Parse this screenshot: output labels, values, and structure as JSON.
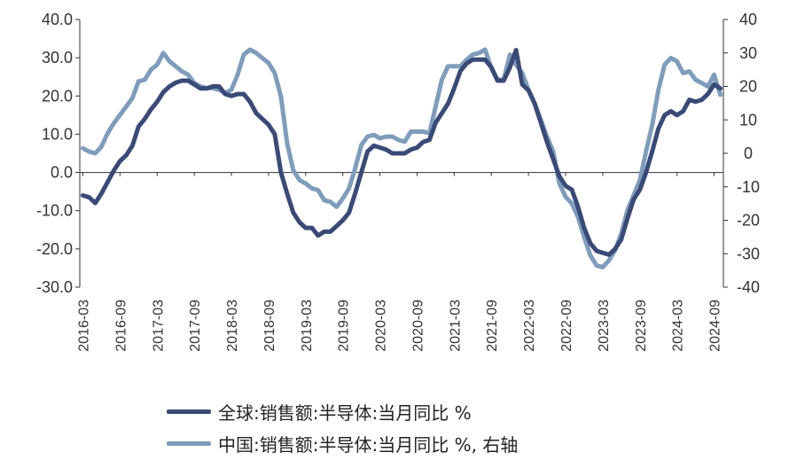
{
  "chart_data": {
    "type": "line",
    "legend": [
      {
        "name": "全球:销售额:半导体:当月同比 %",
        "color": "#3a4a78"
      },
      {
        "name": "中国:销售额:半导体:当月同比 %, 右轴",
        "color": "#7f9dbb"
      }
    ],
    "x_tick_labels": [
      "2016-03",
      "2016-09",
      "2017-03",
      "2017-09",
      "2018-03",
      "2018-09",
      "2019-03",
      "2019-09",
      "2020-03",
      "2020-09",
      "2021-03",
      "2021-09",
      "2022-03",
      "2022-09",
      "2023-03",
      "2023-09",
      "2024-03",
      "2024-09"
    ],
    "y_left": {
      "min": -30,
      "max": 40,
      "ticks": [
        "40.0",
        "30.0",
        "20.0",
        "10.0",
        "0.0",
        "-10.0",
        "-20.0",
        "-30.0"
      ]
    },
    "y_right": {
      "min": -40,
      "max": 40,
      "ticks": [
        "40",
        "30",
        "20",
        "10",
        "0",
        "-10",
        "-20",
        "-30",
        "-40"
      ]
    },
    "series": [
      {
        "name": "全球:销售额:半导体:当月同比 %",
        "axis": "left",
        "color": "#3a4a78",
        "points": [
          [
            "2016-03",
            -6.0
          ],
          [
            "2016-04",
            -6.5
          ],
          [
            "2016-05",
            -8.0
          ],
          [
            "2016-06",
            -5.5
          ],
          [
            "2016-07",
            -2.5
          ],
          [
            "2016-08",
            0.5
          ],
          [
            "2016-09",
            3.0
          ],
          [
            "2016-10",
            4.5
          ],
          [
            "2016-11",
            7.0
          ],
          [
            "2016-12",
            12.0
          ],
          [
            "2017-01",
            14.0
          ],
          [
            "2017-02",
            16.5
          ],
          [
            "2017-03",
            18.5
          ],
          [
            "2017-04",
            21.0
          ],
          [
            "2017-05",
            22.5
          ],
          [
            "2017-06",
            23.5
          ],
          [
            "2017-07",
            24.0
          ],
          [
            "2017-08",
            24.0
          ],
          [
            "2017-09",
            23.0
          ],
          [
            "2017-10",
            22.0
          ],
          [
            "2017-11",
            22.0
          ],
          [
            "2017-12",
            22.5
          ],
          [
            "2018-01",
            22.5
          ],
          [
            "2018-02",
            20.5
          ],
          [
            "2018-03",
            20.0
          ],
          [
            "2018-04",
            20.5
          ],
          [
            "2018-05",
            20.5
          ],
          [
            "2018-06",
            18.5
          ],
          [
            "2018-07",
            15.5
          ],
          [
            "2018-08",
            14.0
          ],
          [
            "2018-09",
            12.5
          ],
          [
            "2018-10",
            10.0
          ],
          [
            "2018-11",
            0.0
          ],
          [
            "2018-12",
            -5.5
          ],
          [
            "2019-01",
            -10.5
          ],
          [
            "2019-02",
            -13.0
          ],
          [
            "2019-03",
            -14.5
          ],
          [
            "2019-04",
            -14.5
          ],
          [
            "2019-05",
            -16.5
          ],
          [
            "2019-06",
            -15.5
          ],
          [
            "2019-07",
            -15.5
          ],
          [
            "2019-08",
            -14.0
          ],
          [
            "2019-09",
            -12.5
          ],
          [
            "2019-10",
            -10.5
          ],
          [
            "2019-11",
            -5.5
          ],
          [
            "2019-12",
            0.0
          ],
          [
            "2020-01",
            5.5
          ],
          [
            "2020-02",
            7.0
          ],
          [
            "2020-03",
            6.5
          ],
          [
            "2020-04",
            6.0
          ],
          [
            "2020-05",
            5.0
          ],
          [
            "2020-06",
            5.0
          ],
          [
            "2020-07",
            5.0
          ],
          [
            "2020-08",
            6.0
          ],
          [
            "2020-09",
            6.5
          ],
          [
            "2020-10",
            8.0
          ],
          [
            "2020-11",
            8.5
          ],
          [
            "2020-12",
            13.0
          ],
          [
            "2021-01",
            15.5
          ],
          [
            "2021-02",
            18.0
          ],
          [
            "2021-03",
            22.0
          ],
          [
            "2021-04",
            26.5
          ],
          [
            "2021-05",
            28.5
          ],
          [
            "2021-06",
            29.5
          ],
          [
            "2021-07",
            29.5
          ],
          [
            "2021-08",
            29.5
          ],
          [
            "2021-09",
            27.5
          ],
          [
            "2021-10",
            24.0
          ],
          [
            "2021-11",
            24.0
          ],
          [
            "2021-12",
            27.5
          ],
          [
            "2022-01",
            32.0
          ],
          [
            "2022-02",
            23.0
          ],
          [
            "2022-03",
            21.5
          ],
          [
            "2022-04",
            18.0
          ],
          [
            "2022-05",
            13.0
          ],
          [
            "2022-06",
            8.0
          ],
          [
            "2022-07",
            3.5
          ],
          [
            "2022-08",
            -1.0
          ],
          [
            "2022-09",
            -3.5
          ],
          [
            "2022-10",
            -4.5
          ],
          [
            "2022-11",
            -9.0
          ],
          [
            "2022-12",
            -14.5
          ],
          [
            "2023-01",
            -18.5
          ],
          [
            "2023-02",
            -20.5
          ],
          [
            "2023-03",
            -21.0
          ],
          [
            "2023-04",
            -21.5
          ],
          [
            "2023-05",
            -20.0
          ],
          [
            "2023-06",
            -17.5
          ],
          [
            "2023-07",
            -12.0
          ],
          [
            "2023-08",
            -7.0
          ],
          [
            "2023-09",
            -4.5
          ],
          [
            "2023-10",
            0.0
          ],
          [
            "2023-11",
            5.5
          ],
          [
            "2023-12",
            11.5
          ],
          [
            "2024-01",
            15.0
          ],
          [
            "2024-02",
            16.0
          ],
          [
            "2024-03",
            15.0
          ],
          [
            "2024-04",
            16.0
          ],
          [
            "2024-05",
            19.0
          ],
          [
            "2024-06",
            18.5
          ],
          [
            "2024-07",
            19.0
          ],
          [
            "2024-08",
            20.5
          ],
          [
            "2024-09",
            23.0
          ],
          [
            "2024-10",
            22.0
          ]
        ]
      },
      {
        "name": "中国:销售额:半导体:当月同比 %, 右轴",
        "axis": "right",
        "color": "#7f9dbb",
        "points": [
          [
            "2016-03",
            1.5
          ],
          [
            "2016-04",
            0.5
          ],
          [
            "2016-05",
            0.0
          ],
          [
            "2016-06",
            2.0
          ],
          [
            "2016-07",
            6.0
          ],
          [
            "2016-08",
            9.0
          ],
          [
            "2016-09",
            11.5
          ],
          [
            "2016-10",
            14.0
          ],
          [
            "2016-11",
            16.5
          ],
          [
            "2016-12",
            21.5
          ],
          [
            "2017-01",
            22.0
          ],
          [
            "2017-02",
            25.0
          ],
          [
            "2017-03",
            26.5
          ],
          [
            "2017-04",
            30.0
          ],
          [
            "2017-05",
            27.5
          ],
          [
            "2017-06",
            26.0
          ],
          [
            "2017-07",
            24.5
          ],
          [
            "2017-08",
            23.5
          ],
          [
            "2017-09",
            21.0
          ],
          [
            "2017-10",
            20.0
          ],
          [
            "2017-11",
            19.5
          ],
          [
            "2017-12",
            19.5
          ],
          [
            "2018-01",
            19.0
          ],
          [
            "2018-02",
            18.0
          ],
          [
            "2018-03",
            19.0
          ],
          [
            "2018-04",
            23.5
          ],
          [
            "2018-05",
            29.5
          ],
          [
            "2018-06",
            31.0
          ],
          [
            "2018-07",
            30.0
          ],
          [
            "2018-08",
            28.5
          ],
          [
            "2018-09",
            27.0
          ],
          [
            "2018-10",
            24.0
          ],
          [
            "2018-11",
            17.0
          ],
          [
            "2018-12",
            3.0
          ],
          [
            "2019-01",
            -5.0
          ],
          [
            "2019-02",
            -8.0
          ],
          [
            "2019-03",
            -9.0
          ],
          [
            "2019-04",
            -10.5
          ],
          [
            "2019-05",
            -11.0
          ],
          [
            "2019-06",
            -14.0
          ],
          [
            "2019-07",
            -14.5
          ],
          [
            "2019-08",
            -16.0
          ],
          [
            "2019-09",
            -13.5
          ],
          [
            "2019-10",
            -10.5
          ],
          [
            "2019-11",
            -4.5
          ],
          [
            "2019-12",
            2.5
          ],
          [
            "2020-01",
            5.0
          ],
          [
            "2020-02",
            5.5
          ],
          [
            "2020-03",
            4.5
          ],
          [
            "2020-04",
            5.0
          ],
          [
            "2020-05",
            5.0
          ],
          [
            "2020-06",
            4.0
          ],
          [
            "2020-07",
            3.5
          ],
          [
            "2020-08",
            6.5
          ],
          [
            "2020-09",
            6.5
          ],
          [
            "2020-10",
            6.5
          ],
          [
            "2020-11",
            6.0
          ],
          [
            "2020-12",
            14.0
          ],
          [
            "2021-01",
            22.0
          ],
          [
            "2021-02",
            26.0
          ],
          [
            "2021-03",
            26.0
          ],
          [
            "2021-04",
            26.0
          ],
          [
            "2021-05",
            28.0
          ],
          [
            "2021-06",
            29.5
          ],
          [
            "2021-07",
            30.0
          ],
          [
            "2021-08",
            31.0
          ],
          [
            "2021-09",
            25.5
          ],
          [
            "2021-10",
            22.0
          ],
          [
            "2021-11",
            22.0
          ],
          [
            "2021-12",
            29.5
          ],
          [
            "2022-01",
            26.5
          ],
          [
            "2022-02",
            24.0
          ],
          [
            "2022-03",
            19.0
          ],
          [
            "2022-04",
            15.0
          ],
          [
            "2022-05",
            10.0
          ],
          [
            "2022-06",
            5.0
          ],
          [
            "2022-07",
            0.5
          ],
          [
            "2022-08",
            -9.0
          ],
          [
            "2022-09",
            -13.0
          ],
          [
            "2022-10",
            -15.0
          ],
          [
            "2022-11",
            -19.0
          ],
          [
            "2022-12",
            -25.0
          ],
          [
            "2023-01",
            -30.5
          ],
          [
            "2023-02",
            -33.5
          ],
          [
            "2023-03",
            -34.0
          ],
          [
            "2023-04",
            -32.0
          ],
          [
            "2023-05",
            -29.0
          ],
          [
            "2023-06",
            -24.0
          ],
          [
            "2023-07",
            -17.0
          ],
          [
            "2023-08",
            -12.5
          ],
          [
            "2023-09",
            -8.0
          ],
          [
            "2023-10",
            0.5
          ],
          [
            "2023-11",
            8.5
          ],
          [
            "2023-12",
            19.0
          ],
          [
            "2024-01",
            26.5
          ],
          [
            "2024-02",
            28.5
          ],
          [
            "2024-03",
            27.5
          ],
          [
            "2024-04",
            24.0
          ],
          [
            "2024-05",
            24.5
          ],
          [
            "2024-06",
            22.0
          ],
          [
            "2024-07",
            21.0
          ],
          [
            "2024-08",
            20.0
          ],
          [
            "2024-09",
            23.5
          ],
          [
            "2024-10",
            17.5
          ]
        ]
      }
    ]
  }
}
